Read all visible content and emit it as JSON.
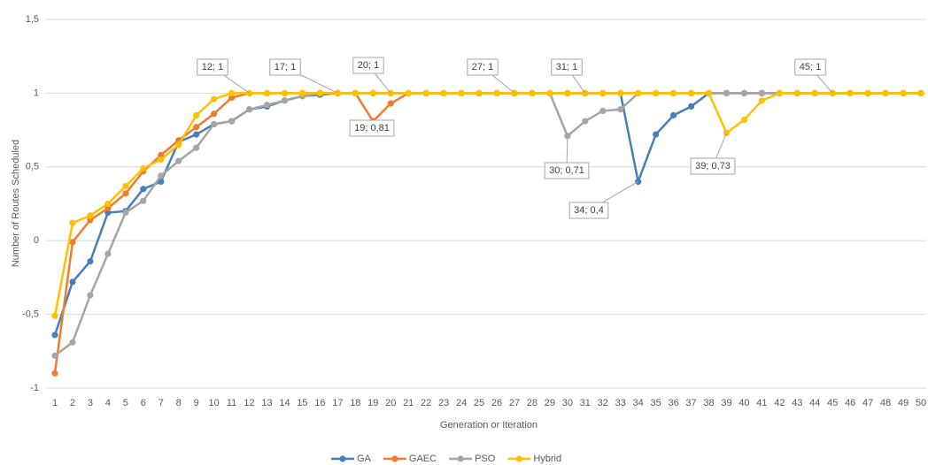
{
  "chart_data": {
    "type": "line",
    "x_label": "Generation or Iteration",
    "y_label": "Number of Routes Scheduled",
    "categories": [
      1,
      2,
      3,
      4,
      5,
      6,
      7,
      8,
      9,
      10,
      11,
      12,
      13,
      14,
      15,
      16,
      17,
      18,
      19,
      20,
      21,
      22,
      23,
      24,
      25,
      26,
      27,
      28,
      29,
      30,
      31,
      32,
      33,
      34,
      35,
      36,
      37,
      38,
      39,
      40,
      41,
      42,
      43,
      44,
      45,
      46,
      47,
      48,
      49,
      50
    ],
    "ylim": [
      -1,
      1.5
    ],
    "yticks": [
      {
        "value": -1,
        "label": "-1"
      },
      {
        "value": -0.5,
        "label": "-0,5"
      },
      0,
      {
        "value": 0.5,
        "label": "0,5"
      },
      1,
      {
        "value": 1.5,
        "label": "1,5"
      }
    ],
    "grid": true,
    "legend": "bottom",
    "series": [
      {
        "name": "GA",
        "color": "#4a7ebb",
        "values": [
          -0.64,
          -0.28,
          -0.14,
          0.19,
          0.2,
          0.35,
          0.4,
          0.67,
          0.72,
          0.79,
          0.81,
          0.89,
          0.91,
          0.95,
          0.98,
          0.99,
          1,
          1,
          1,
          1,
          1,
          1,
          1,
          1,
          1,
          1,
          1,
          1,
          1,
          1,
          1,
          1,
          1,
          0.4,
          0.72,
          0.85,
          0.91,
          1,
          1,
          1,
          1,
          1,
          1,
          1,
          1,
          1,
          1,
          1,
          1,
          1
        ]
      },
      {
        "name": "GAEC",
        "color": "#ed7d31",
        "values": [
          -0.9,
          -0.01,
          0.14,
          0.22,
          0.32,
          0.47,
          0.58,
          0.68,
          0.77,
          0.86,
          0.97,
          1,
          1,
          1,
          1,
          1,
          1,
          1,
          0.81,
          0.93,
          1,
          1,
          1,
          1,
          1,
          1,
          1,
          1,
          1,
          1,
          1,
          1,
          1,
          1,
          1,
          1,
          1,
          1,
          1,
          1,
          1,
          1,
          1,
          1,
          1,
          1,
          1,
          1,
          1,
          1
        ]
      },
      {
        "name": "PSO",
        "color": "#a5a5a5",
        "values": [
          -0.78,
          -0.69,
          -0.37,
          -0.09,
          0.19,
          0.27,
          0.44,
          0.54,
          0.63,
          0.79,
          0.81,
          0.89,
          0.92,
          0.95,
          0.98,
          1,
          1,
          1,
          1,
          1,
          1,
          1,
          1,
          1,
          1,
          1,
          1,
          1,
          1,
          0.71,
          0.81,
          0.88,
          0.89,
          1,
          1,
          1,
          1,
          1,
          1,
          1,
          1,
          1,
          1,
          1,
          1,
          1,
          1,
          1,
          1,
          1
        ]
      },
      {
        "name": "Hybrid",
        "color": "#ffc000",
        "values": [
          -0.51,
          0.12,
          0.17,
          0.25,
          0.37,
          0.49,
          0.55,
          0.65,
          0.85,
          0.96,
          1,
          1,
          1,
          1,
          1,
          1,
          1,
          1,
          1,
          1,
          1,
          1,
          1,
          1,
          1,
          1,
          1,
          1,
          1,
          1,
          1,
          1,
          1,
          1,
          1,
          1,
          1,
          1,
          0.73,
          0.82,
          0.95,
          1,
          1,
          1,
          1,
          1,
          1,
          1,
          1,
          1
        ]
      }
    ],
    "annotations": [
      "12; 1",
      "17; 1",
      "20; 1",
      "27; 1",
      "31; 1",
      "45; 1",
      "19; 0,81",
      "30; 0,71",
      "34; 0,4",
      "39; 0,73"
    ]
  }
}
